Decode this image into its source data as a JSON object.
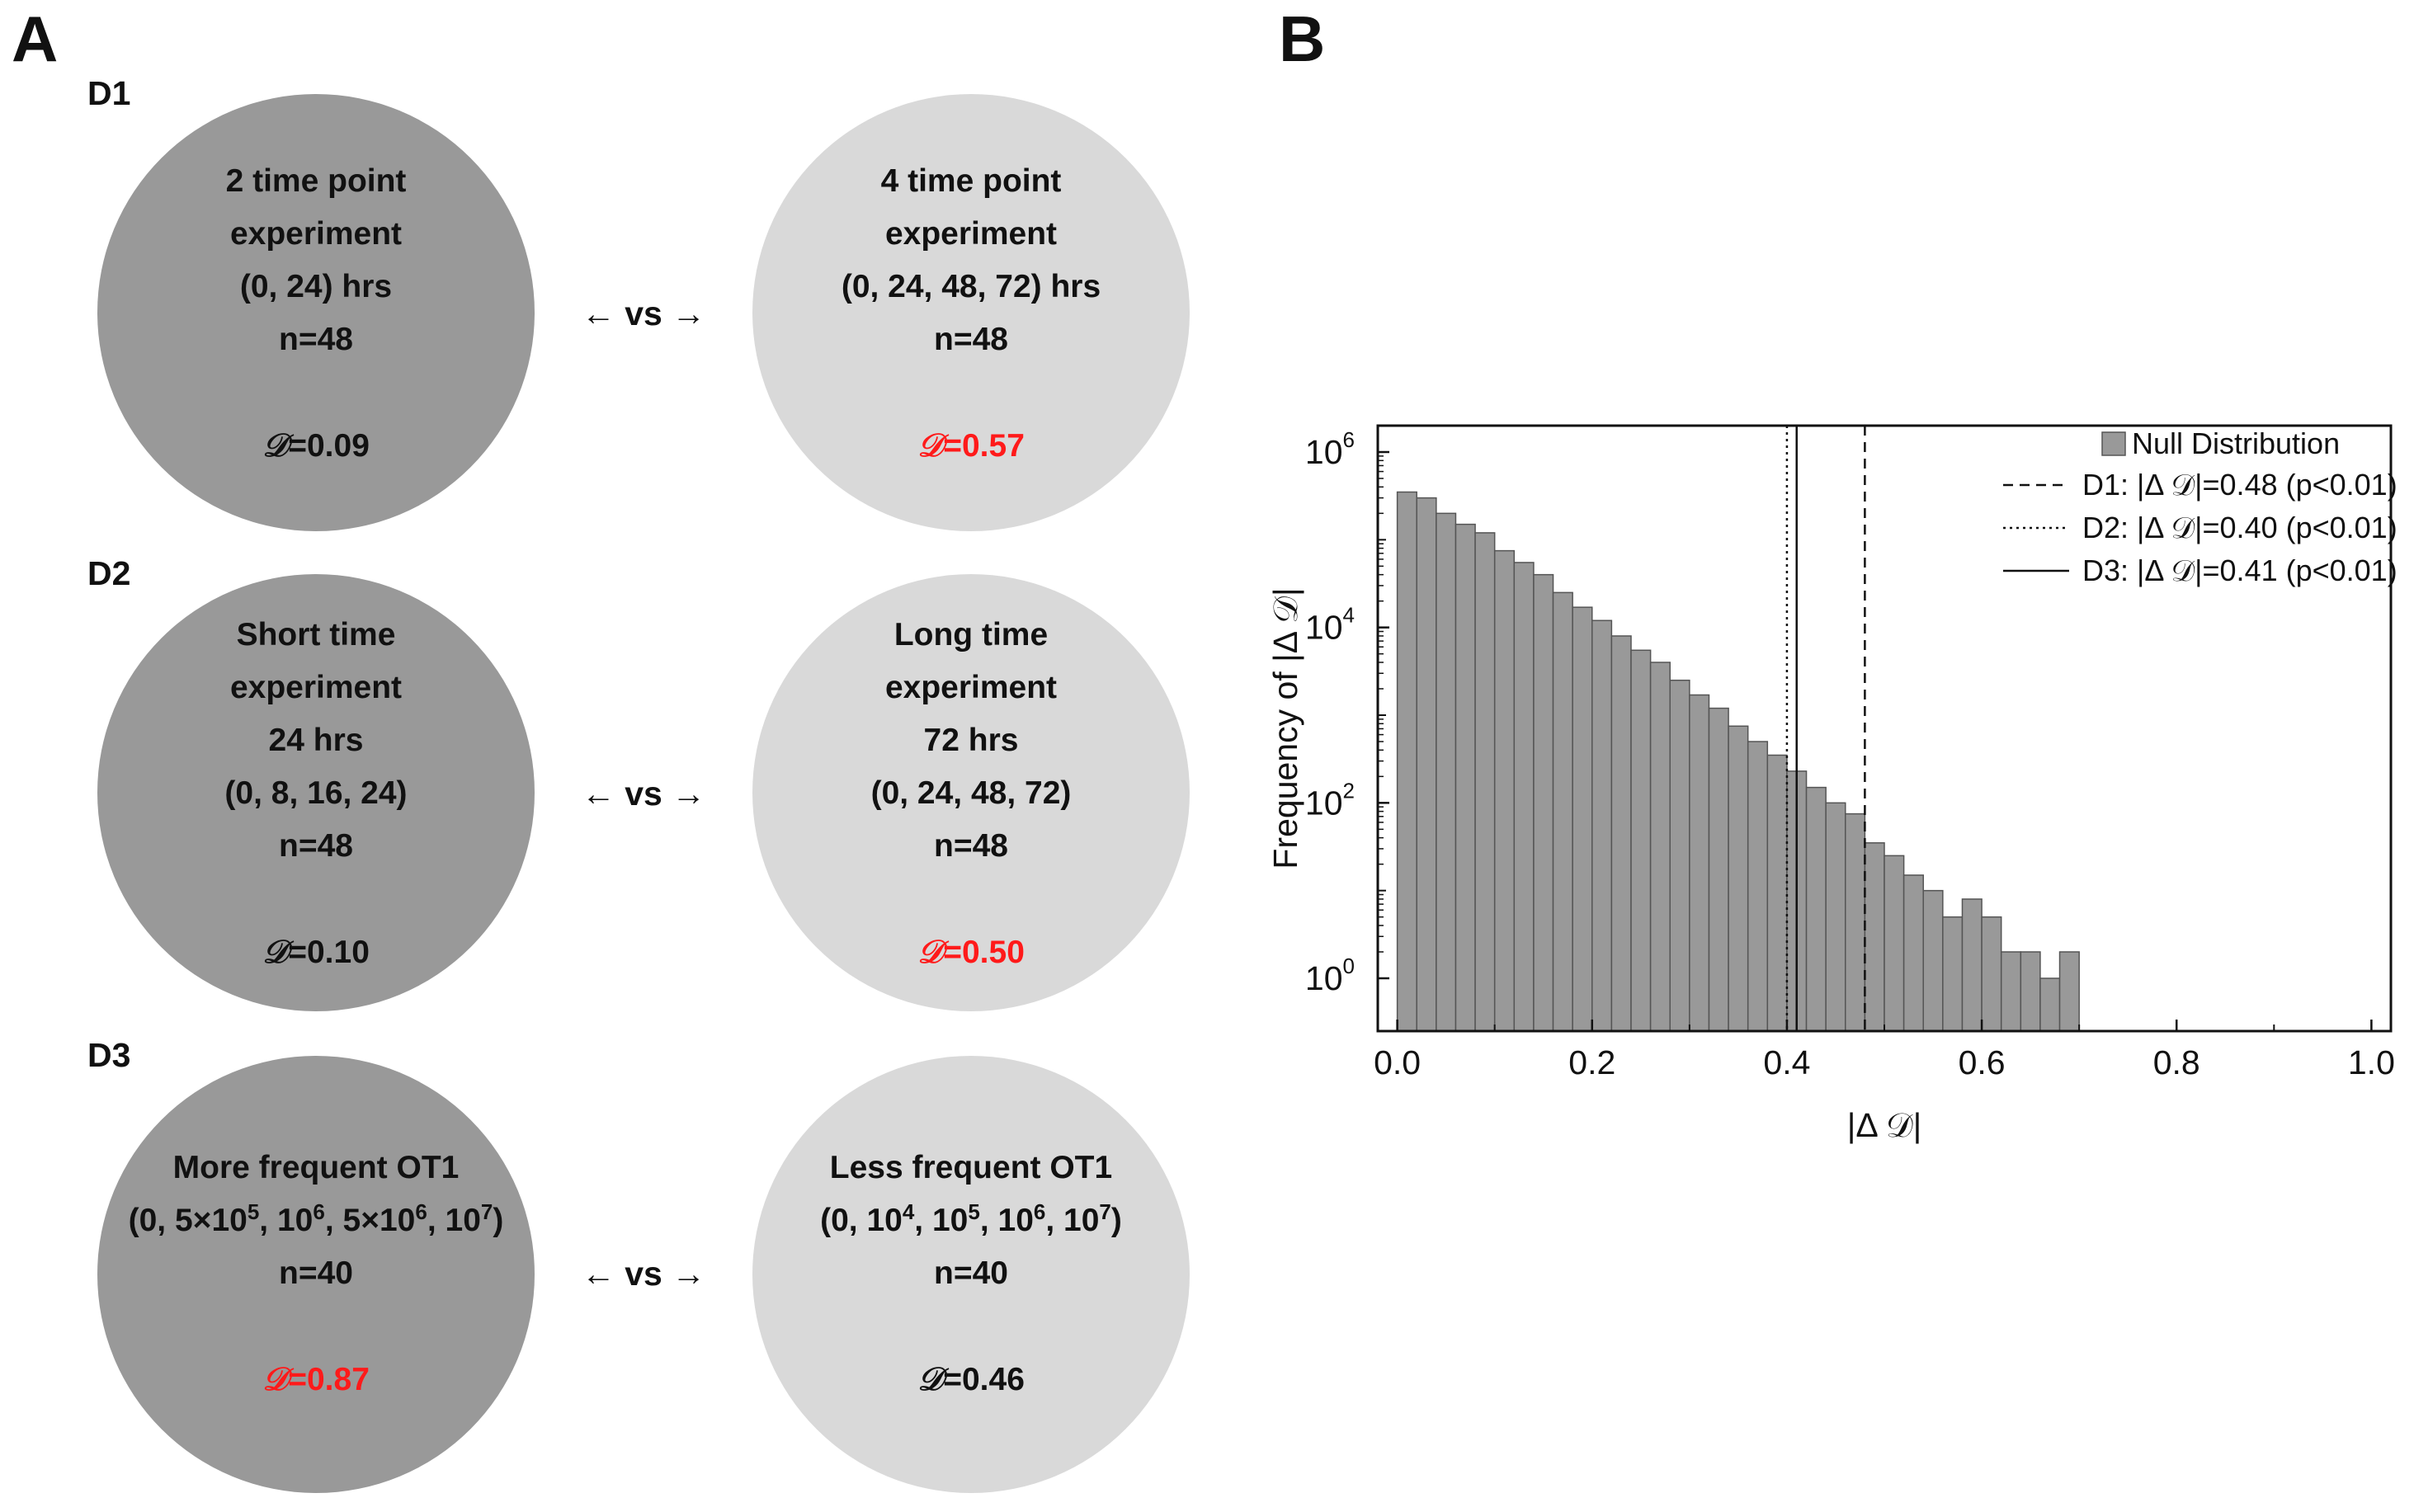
{
  "panels": {
    "a": "A",
    "b": "B"
  },
  "vs_text": "← vs →",
  "d_symbol": "𝒟",
  "rows": [
    {
      "label": "D1",
      "left": {
        "lines": [
          "2 time point",
          "experiment",
          "(0, 24) hrs",
          "n=48"
        ],
        "d_value": "=0.09",
        "d_highlight": false
      },
      "right": {
        "lines": [
          "4 time point",
          "experiment",
          "(0, 24, 48, 72) hrs",
          "n=48"
        ],
        "d_value": "=0.57",
        "d_highlight": true
      }
    },
    {
      "label": "D2",
      "left": {
        "lines": [
          "Short time",
          "experiment",
          "24 hrs",
          "(0, 8, 16, 24)",
          "n=48"
        ],
        "d_value": "=0.10",
        "d_highlight": false
      },
      "right": {
        "lines": [
          "Long time",
          "experiment",
          "72 hrs",
          "(0, 24, 48, 72)",
          "n=48"
        ],
        "d_value": "=0.50",
        "d_highlight": true
      }
    },
    {
      "label": "D3",
      "left": {
        "title": "More frequent OT1",
        "timepoints": "(0, 5×10^5, 10^6, 5×10^6, 10^7)",
        "n": "n=40",
        "d_value": "=0.87",
        "d_highlight": true
      },
      "right": {
        "title": "Less frequent OT1",
        "timepoints": "(0, 10^4, 10^5, 10^6, 10^7)",
        "n": "n=40",
        "d_value": "=0.46",
        "d_highlight": false
      }
    }
  ],
  "colors": {
    "dark_circle": "#999999",
    "light_circle": "#d9d9d9",
    "highlight": "#ff1a1a",
    "bar_fill": "#999999"
  },
  "chart_data": {
    "type": "bar",
    "title": "",
    "xlabel": "|Δ 𝒟|",
    "ylabel": "Frequency of |Δ 𝒟|",
    "y_scale": "log",
    "xlim": [
      -0.02,
      1.02
    ],
    "ylim": [
      0.25,
      2000000
    ],
    "x_ticks": [
      0.0,
      0.2,
      0.4,
      0.6,
      0.8,
      1.0
    ],
    "x_tick_labels": [
      "0.0",
      "0.2",
      "0.4",
      "0.6",
      "0.8",
      "1.0"
    ],
    "y_ticks": [
      1,
      100,
      10000,
      1000000
    ],
    "y_tick_labels": [
      {
        "base": "10",
        "exp": "0"
      },
      {
        "base": "10",
        "exp": "2"
      },
      {
        "base": "10",
        "exp": "4"
      },
      {
        "base": "10",
        "exp": "6"
      }
    ],
    "bin_width": 0.02,
    "series": [
      {
        "name": "Null Distribution",
        "bin_starts": [
          0.0,
          0.02,
          0.04,
          0.06,
          0.08,
          0.1,
          0.12,
          0.14,
          0.16,
          0.18,
          0.2,
          0.22,
          0.24,
          0.26,
          0.28,
          0.3,
          0.32,
          0.34,
          0.36,
          0.38,
          0.4,
          0.42,
          0.44,
          0.46,
          0.48,
          0.5,
          0.52,
          0.54,
          0.56,
          0.58,
          0.6,
          0.62,
          0.64,
          0.66,
          0.68
        ],
        "values": [
          350000,
          300000,
          200000,
          150000,
          120000,
          75000,
          55000,
          40000,
          25000,
          17000,
          12000,
          8000,
          5500,
          4000,
          2500,
          1700,
          1200,
          750,
          500,
          350,
          230,
          150,
          100,
          75,
          35,
          25,
          15,
          10,
          5,
          8,
          5,
          2,
          2,
          1,
          2
        ]
      }
    ],
    "reference_lines": [
      {
        "name": "D1: |Δ 𝒟|=0.48 (p<0.01)",
        "x": 0.48,
        "style": "dashed"
      },
      {
        "name": "D2: |Δ 𝒟|=0.40 (p<0.01)",
        "x": 0.4,
        "style": "dotted"
      },
      {
        "name": "D3: |Δ 𝒟|=0.41 (p<0.01)",
        "x": 0.41,
        "style": "solid"
      }
    ],
    "legend_position": "top-right",
    "grid": false
  }
}
